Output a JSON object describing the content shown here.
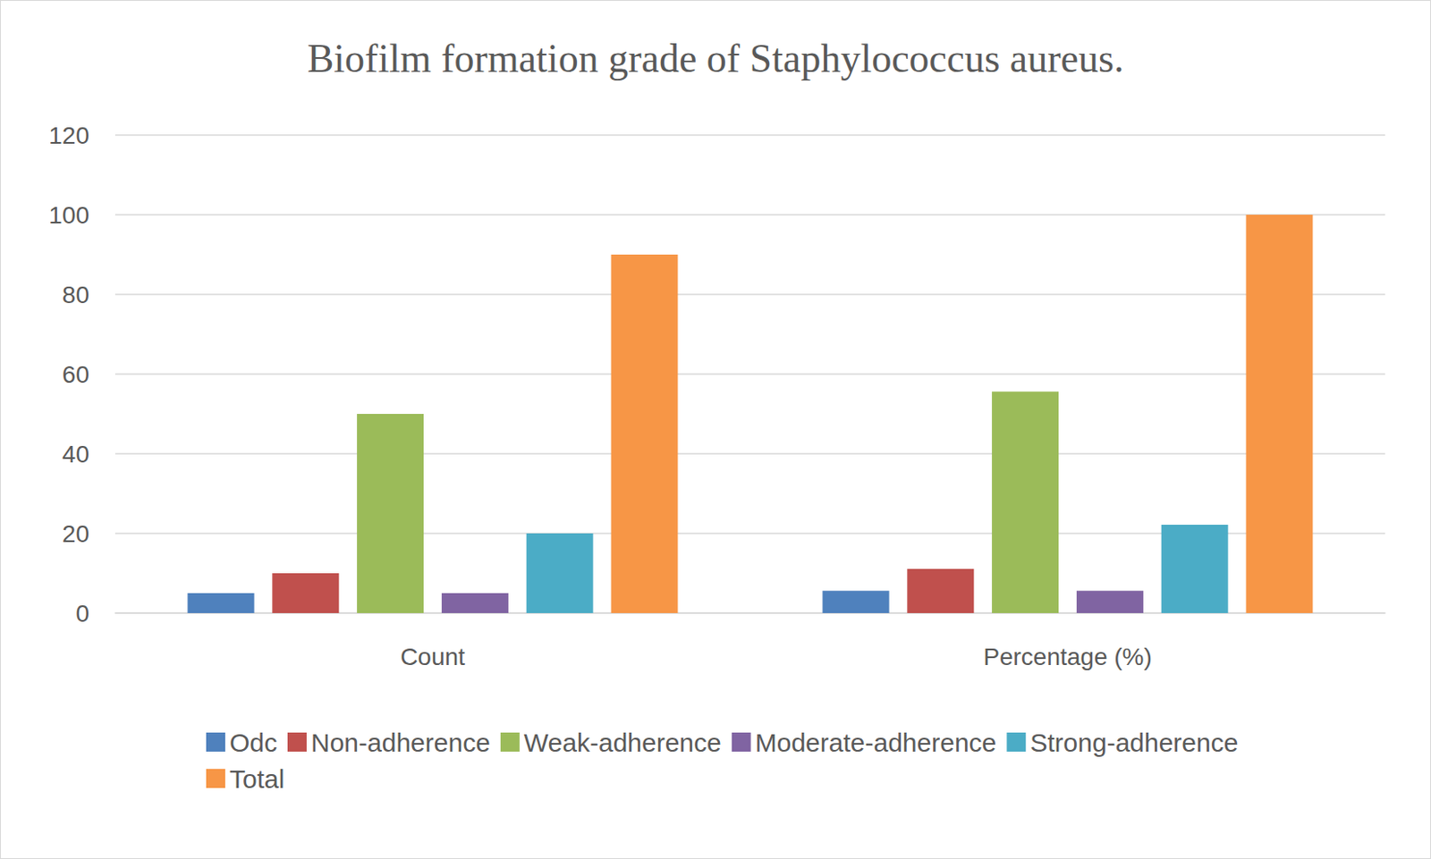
{
  "chart_data": {
    "type": "bar",
    "title": "Biofilm formation grade of Staphylococcus aureus.",
    "categories": [
      "Count",
      "Percentage (%)"
    ],
    "series": [
      {
        "name": "Odc",
        "color": "#4f81bd",
        "values": [
          5,
          5.6
        ]
      },
      {
        "name": "Non-adherence",
        "color": "#c0504d",
        "values": [
          10,
          11.1
        ]
      },
      {
        "name": "Weak-adherence",
        "color": "#9bbb59",
        "values": [
          50,
          55.6
        ]
      },
      {
        "name": "Moderate-adherence",
        "color": "#8064a2",
        "values": [
          5,
          5.6
        ]
      },
      {
        "name": "Strong-adherence",
        "color": "#4bacc6",
        "values": [
          20,
          22.2
        ]
      },
      {
        "name": "Total",
        "color": "#f79646",
        "values": [
          90,
          100
        ]
      }
    ],
    "ylim": [
      0,
      120
    ],
    "yticks": [
      0,
      20,
      40,
      60,
      80,
      100,
      120
    ],
    "grid": true,
    "legend": "bottom"
  }
}
